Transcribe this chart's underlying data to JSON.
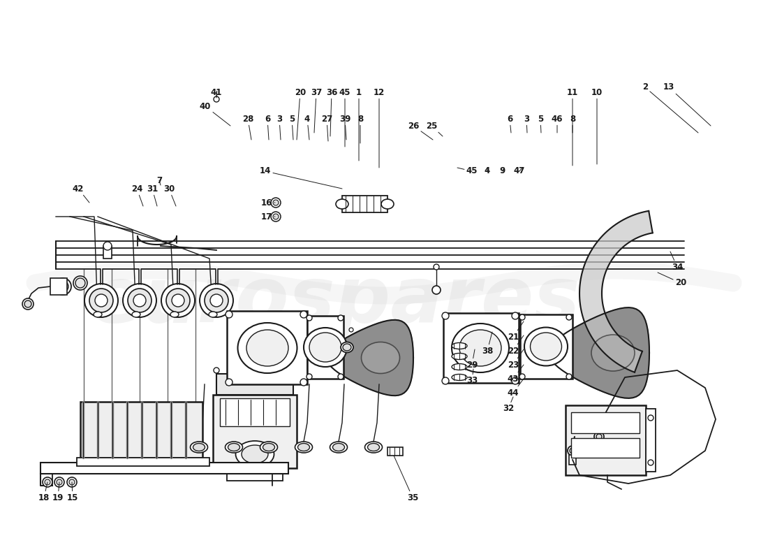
{
  "background_color": "#ffffff",
  "line_color": "#1a1a1a",
  "watermark_text": "eurospares",
  "watermark_color": "#cccccc",
  "fig_width": 11.0,
  "fig_height": 8.0,
  "dpi": 100
}
